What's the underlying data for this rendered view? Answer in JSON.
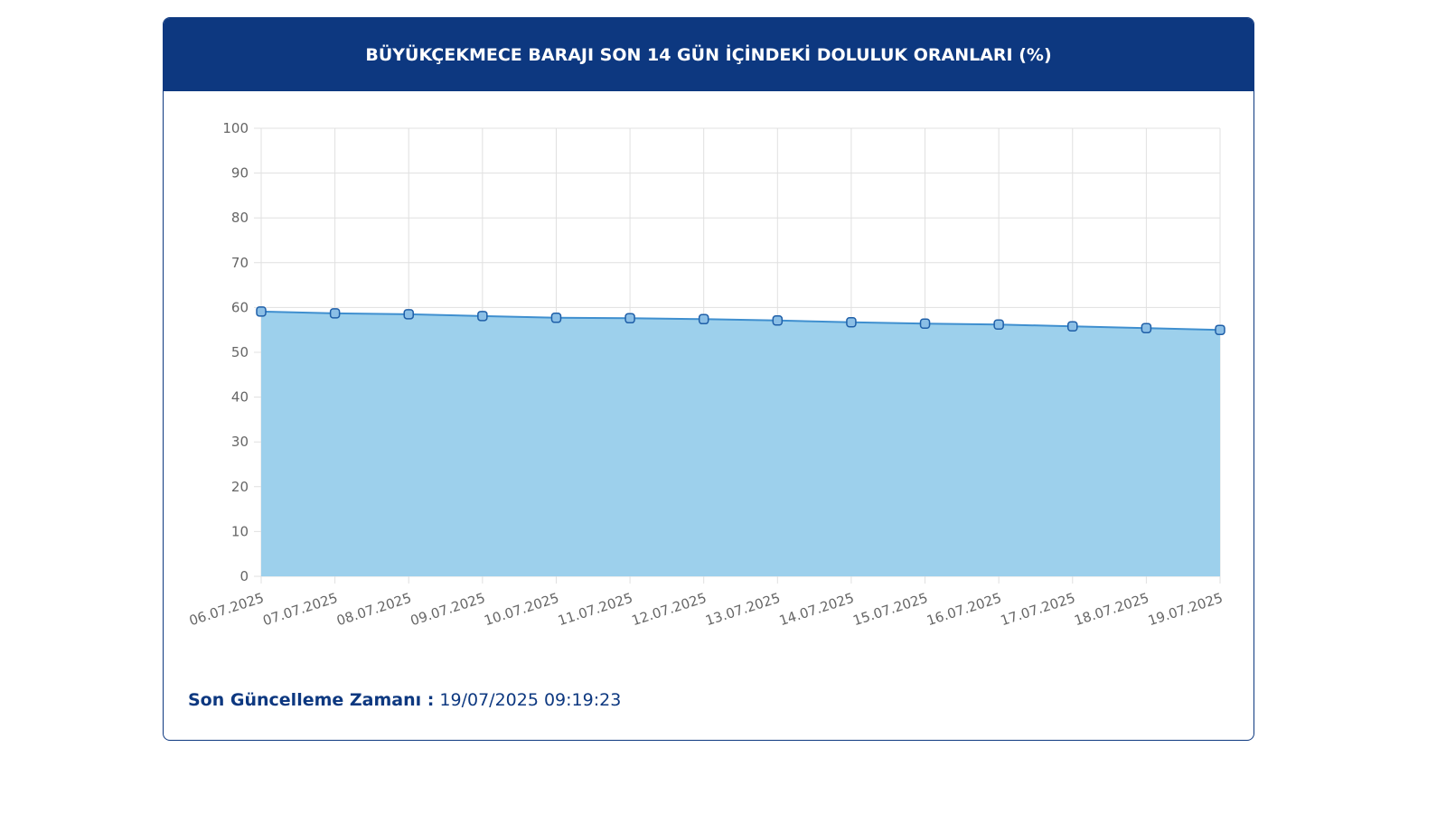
{
  "chart_data": {
    "type": "area",
    "title": "BÜYÜKÇEKMECE BARAJI SON 14 GÜN İÇİNDEKİ DOLULUK ORANLARI (%)",
    "categories": [
      "06.07.2025",
      "07.07.2025",
      "08.07.2025",
      "09.07.2025",
      "10.07.2025",
      "11.07.2025",
      "12.07.2025",
      "13.07.2025",
      "14.07.2025",
      "15.07.2025",
      "16.07.2025",
      "17.07.2025",
      "18.07.2025",
      "19.07.2025"
    ],
    "series": [
      {
        "color": "#3f8fcf",
        "values": [
          59.1,
          58.7,
          58.5,
          58.1,
          57.7,
          57.6,
          57.4,
          57.1,
          56.7,
          56.4,
          56.2,
          55.8,
          55.4,
          55.0
        ]
      }
    ],
    "ylim": [
      0,
      100
    ],
    "yticks": [
      0,
      10,
      20,
      30,
      40,
      50,
      60,
      70,
      80,
      90,
      100
    ],
    "grid": true
  },
  "footer": {
    "label": "Son Güncelleme Zamanı :",
    "value": "19/07/2025 09:19:23"
  }
}
